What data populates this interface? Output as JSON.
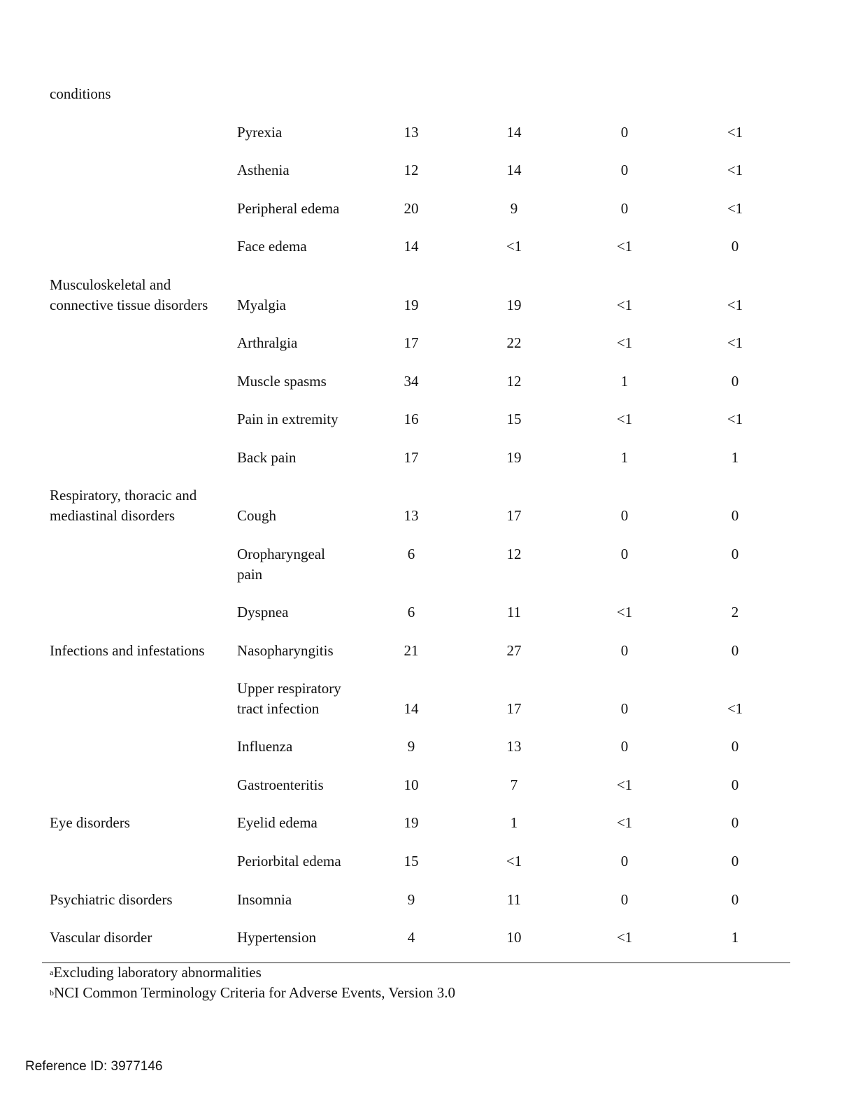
{
  "header_fragment": "conditions",
  "rows": [
    {
      "soc": "",
      "term": "Pyrexia",
      "v": [
        "13",
        "14",
        "0",
        "<1"
      ]
    },
    {
      "soc": "",
      "term": "Asthenia",
      "v": [
        "12",
        "14",
        "0",
        "<1"
      ]
    },
    {
      "soc": "",
      "term": "Peripheral edema",
      "v": [
        "20",
        "9",
        "0",
        "<1"
      ]
    },
    {
      "soc": "",
      "term": "Face edema",
      "v": [
        "14",
        "<1",
        "<1",
        "0"
      ]
    },
    {
      "soc": "Musculoskeletal and connective tissue disorders",
      "term": "Myalgia",
      "v": [
        "19",
        "19",
        "<1",
        "<1"
      ]
    },
    {
      "soc": "",
      "term": "Arthralgia",
      "v": [
        "17",
        "22",
        "<1",
        "<1"
      ]
    },
    {
      "soc": "",
      "term": "Muscle spasms",
      "v": [
        "34",
        "12",
        "1",
        "0"
      ]
    },
    {
      "soc": "",
      "term": "Pain in extremity",
      "v": [
        "16",
        "15",
        "<1",
        "<1"
      ]
    },
    {
      "soc": "",
      "term": "Back pain",
      "v": [
        "17",
        "19",
        "1",
        "1"
      ]
    },
    {
      "soc": "Respiratory, thoracic and mediastinal disorders",
      "term": "Cough",
      "v": [
        "13",
        "17",
        "0",
        "0"
      ]
    },
    {
      "soc": "",
      "term": "Oropharyngeal pain",
      "v": [
        "6",
        "12",
        "0",
        "0"
      ]
    },
    {
      "soc": "",
      "term": "Dyspnea",
      "v": [
        "6",
        "11",
        "<1",
        "2"
      ]
    },
    {
      "soc": "Infections and infestations",
      "term": "Nasopharyngitis",
      "v": [
        "21",
        "27",
        "0",
        "0"
      ]
    },
    {
      "soc": "",
      "term": "Upper respiratory tract infection",
      "v": [
        "14",
        "17",
        "0",
        "<1"
      ]
    },
    {
      "soc": "",
      "term": "Influenza",
      "v": [
        "9",
        "13",
        "0",
        "0"
      ]
    },
    {
      "soc": "",
      "term": "Gastroenteritis",
      "v": [
        "10",
        "7",
        "<1",
        "0"
      ]
    },
    {
      "soc": "Eye disorders",
      "term": "Eyelid edema",
      "v": [
        "19",
        "1",
        "<1",
        "0"
      ]
    },
    {
      "soc": "",
      "term": "Periorbital edema",
      "v": [
        "15",
        "<1",
        "0",
        "0"
      ]
    },
    {
      "soc": "Psychiatric disorders",
      "term": "Insomnia",
      "v": [
        "9",
        "11",
        "0",
        "0"
      ]
    },
    {
      "soc": "Vascular disorder",
      "term": "Hypertension",
      "v": [
        "4",
        "10",
        "<1",
        "1"
      ]
    }
  ],
  "footnotes": [
    {
      "mark": "a",
      "text": "Excluding laboratory abnormalities"
    },
    {
      "mark": "b",
      "text": "NCI Common Terminology Criteria for Adverse Events, Version 3.0"
    }
  ],
  "reference_id": "Reference ID: 3977146"
}
